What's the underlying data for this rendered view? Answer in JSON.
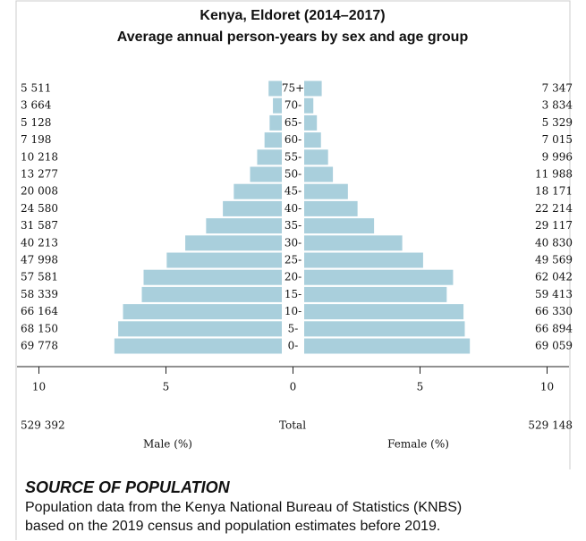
{
  "chart_data": {
    "type": "pyramid",
    "title": "Kenya, Eldoret (2014–2017)",
    "subtitle": "Average annual person-years by sex and age group",
    "categories": [
      "75+",
      "70-",
      "65-",
      "60-",
      "55-",
      "50-",
      "45-",
      "40-",
      "35-",
      "30-",
      "25-",
      "20-",
      "15-",
      "10-",
      "5-",
      "0-"
    ],
    "xlim": [
      0,
      10
    ],
    "xticks": [
      0,
      5,
      10
    ],
    "total_label": "Total",
    "series": [
      {
        "name": "Male (%)",
        "color": "#a9cfdc",
        "values": [
          0.52,
          0.35,
          0.48,
          0.68,
          0.97,
          1.25,
          1.89,
          2.32,
          2.98,
          3.8,
          4.53,
          5.44,
          5.51,
          6.25,
          6.44,
          6.59
        ],
        "person_years": [
          {
            "value": 5511,
            "label": "5 511"
          },
          {
            "value": 3664,
            "label": "3 664"
          },
          {
            "value": 5128,
            "label": "5 128"
          },
          {
            "value": 7198,
            "label": "7 198"
          },
          {
            "value": 10218,
            "label": "10 218"
          },
          {
            "value": 13277,
            "label": "13 277"
          },
          {
            "value": 20008,
            "label": "20 008"
          },
          {
            "value": 24580,
            "label": "24 580"
          },
          {
            "value": 31587,
            "label": "31 587"
          },
          {
            "value": 40213,
            "label": "40 213"
          },
          {
            "value": 47998,
            "label": "47 998"
          },
          {
            "value": 57581,
            "label": "57 581"
          },
          {
            "value": 58339,
            "label": "58 339"
          },
          {
            "value": 66164,
            "label": "66 164"
          },
          {
            "value": 68150,
            "label": "68 150"
          },
          {
            "value": 69778,
            "label": "69 778"
          }
        ],
        "total": {
          "value": 529392,
          "label": "529 392"
        }
      },
      {
        "name": "Female (%)",
        "color": "#a9cfdc",
        "values": [
          0.69,
          0.36,
          0.5,
          0.66,
          0.94,
          1.13,
          1.72,
          2.1,
          2.75,
          3.86,
          4.68,
          5.86,
          5.61,
          6.27,
          6.32,
          6.52
        ],
        "person_years": [
          {
            "value": 7347,
            "label": "7 347"
          },
          {
            "value": 3834,
            "label": "3 834"
          },
          {
            "value": 5329,
            "label": "5 329"
          },
          {
            "value": 7015,
            "label": "7 015"
          },
          {
            "value": 9996,
            "label": "9 996"
          },
          {
            "value": 11988,
            "label": "11 988"
          },
          {
            "value": 18171,
            "label": "18 171"
          },
          {
            "value": 22214,
            "label": "22 214"
          },
          {
            "value": 29117,
            "label": "29 117"
          },
          {
            "value": 40830,
            "label": "40 830"
          },
          {
            "value": 49569,
            "label": "49 569"
          },
          {
            "value": 62042,
            "label": "62 042"
          },
          {
            "value": 59413,
            "label": "59 413"
          },
          {
            "value": 66330,
            "label": "66 330"
          },
          {
            "value": 66894,
            "label": "66 894"
          },
          {
            "value": 69059,
            "label": "69 059"
          }
        ],
        "total": {
          "value": 529148,
          "label": "529 148"
        }
      }
    ]
  },
  "source": {
    "heading": "SOURCE OF POPULATION",
    "lines": [
      "Population data from the Kenya National Bureau of Statistics (KNBS)",
      "based on the 2019 census and population estimates before 2019."
    ]
  }
}
